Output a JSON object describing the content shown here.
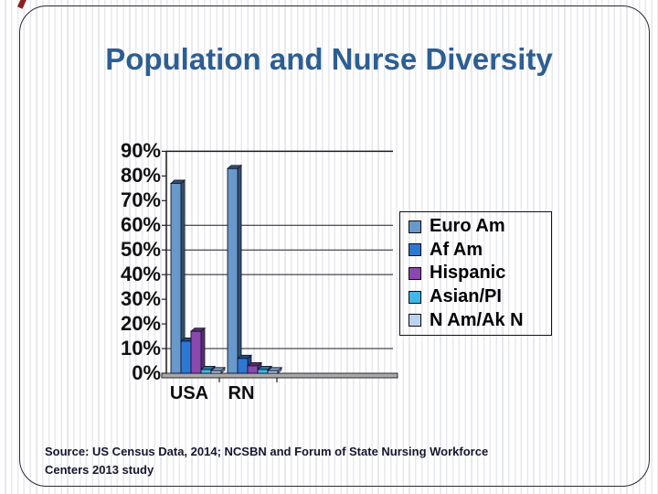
{
  "slide": {
    "title": "Population and Nurse Diversity",
    "title_color": "#2d5e92",
    "source_line1": "Source: US Census Data, 2014; NCSBN and Forum of State Nursing Workforce",
    "source_line2": "Centers 2013 study"
  },
  "chart_data": {
    "type": "bar",
    "style": "3d-column",
    "categories": [
      "USA",
      "RN"
    ],
    "series": [
      {
        "name": "Euro Am",
        "values": [
          77,
          83
        ],
        "color": "#6899cb",
        "dark": "#35506f"
      },
      {
        "name": "Af Am",
        "values": [
          13,
          6
        ],
        "color": "#2e78d2",
        "dark": "#1b4a85"
      },
      {
        "name": "Hispanic",
        "values": [
          17,
          3
        ],
        "color": "#8a49ae",
        "dark": "#5a2d73"
      },
      {
        "name": "Asian/PI",
        "values": [
          1.5,
          1.5
        ],
        "color": "#3fb7e8",
        "dark": "#2579a0"
      },
      {
        "name": "N Am/Ak N",
        "values": [
          1,
          1
        ],
        "color": "#bcd2f0",
        "dark": "#8298bd"
      }
    ],
    "title": "",
    "xlabel": "",
    "ylabel": "",
    "ylim": [
      0,
      90
    ],
    "ytick_labels": [
      "90%",
      "80%",
      "70%",
      "60%",
      "50%",
      "40%",
      "30%",
      "20%",
      "10%",
      "0%"
    ],
    "gridlines_at": [
      90,
      60,
      50,
      40,
      10
    ],
    "grid": true,
    "legend_position": "right",
    "axis_color": "#1c1c1c",
    "floor_color": "#a8a8a8"
  }
}
